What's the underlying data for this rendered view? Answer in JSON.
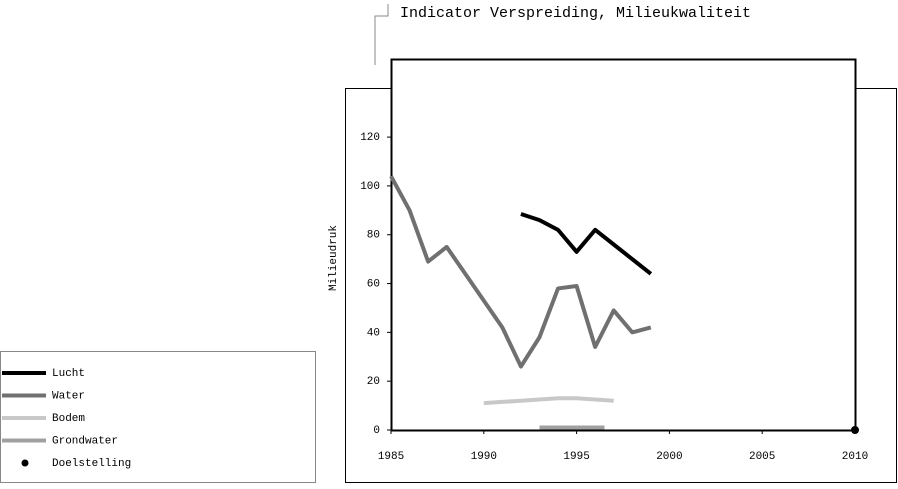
{
  "chart_data": {
    "type": "line",
    "title": "Indicator Verspreiding, Milieukwaliteit",
    "y_label": "Milieudruk",
    "xlim": [
      1985,
      2010
    ],
    "xticks": [
      1985,
      1990,
      1995,
      2000,
      2005,
      2010
    ],
    "ylim": [
      0,
      152
    ],
    "yticks": [
      0,
      20,
      40,
      60,
      80,
      100,
      120
    ],
    "series": [
      {
        "name": "Lucht",
        "color": "#000000",
        "x": [
          1992,
          1993,
          1994,
          1995,
          1996,
          1997,
          1998,
          1999
        ],
        "values": [
          88.5,
          86,
          82,
          73,
          82,
          76,
          70,
          64
        ]
      },
      {
        "name": "Water",
        "color": "#707070",
        "x": [
          1985,
          1986,
          1987,
          1988,
          1989,
          1990,
          1991,
          1992,
          1993,
          1994,
          1995,
          1996,
          1997,
          1998,
          1999
        ],
        "values": [
          104,
          90,
          69,
          75,
          64,
          53,
          42,
          26,
          38,
          58,
          59,
          34,
          49,
          40,
          42
        ]
      },
      {
        "name": "Bodem",
        "color": "#c8c8c8",
        "x": [
          1990,
          1991,
          1992,
          1993,
          1994,
          1995,
          1996,
          1997
        ],
        "values": [
          11,
          11.5,
          12,
          12.5,
          13,
          13,
          12.5,
          12
        ]
      },
      {
        "name": "Grondwater",
        "color": "#a0a0a0",
        "x": [
          1993,
          1996.5
        ],
        "values": [
          1,
          1
        ]
      },
      {
        "name": "Doelstelling",
        "color": "#000000",
        "marker": "point",
        "x": [
          2010
        ],
        "values": [
          0
        ]
      }
    ]
  }
}
